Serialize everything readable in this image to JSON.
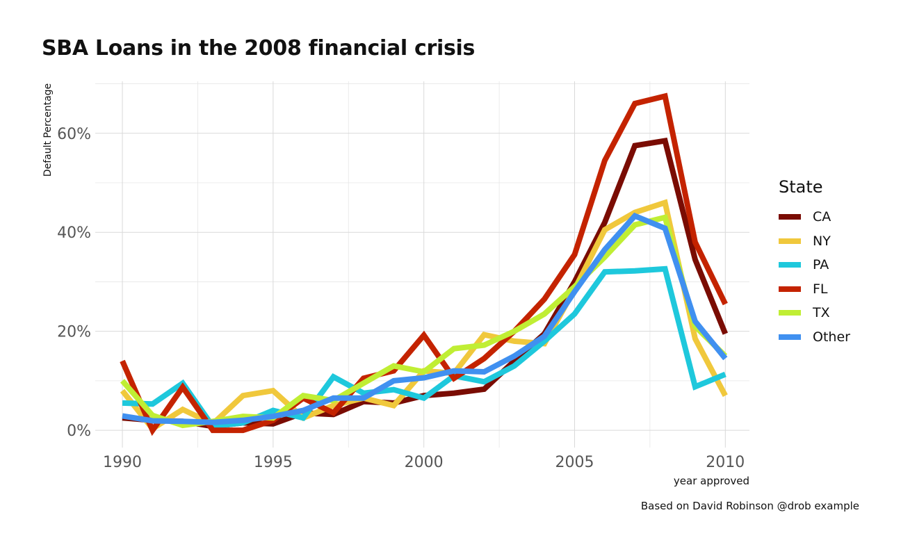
{
  "chart_data": {
    "type": "line",
    "title": "SBA Loans in the 2008 financial crisis",
    "caption": "Based on David Robinson @drob example",
    "xlabel": "year approved",
    "ylabel": "Default Percentage",
    "xlim": [
      1989.1,
      2010.8
    ],
    "ylim": [
      -3.5,
      70.5
    ],
    "xticks": [
      1990,
      1995,
      2000,
      2005,
      2010
    ],
    "xtick_labels": [
      "1990",
      "1995",
      "2000",
      "2005",
      "2010"
    ],
    "yticks": [
      0,
      20,
      40,
      60
    ],
    "ytick_labels": [
      "0%",
      "20%",
      "40%",
      "60%"
    ],
    "grid": true,
    "legend": {
      "title": "State",
      "position": "right"
    },
    "x": [
      1990,
      1991,
      1992,
      1993,
      1994,
      1995,
      1996,
      1997,
      1998,
      1999,
      2000,
      2001,
      2002,
      2003,
      2004,
      2005,
      2006,
      2007,
      2008,
      2009,
      2010
    ],
    "series": [
      {
        "name": "CA",
        "color": "#7a0c03",
        "values": [
          2.5,
          2.0,
          1.8,
          0.8,
          1.5,
          1.3,
          3.5,
          3.2,
          5.8,
          5.5,
          7.0,
          7.5,
          8.3,
          14.0,
          19.5,
          30.0,
          42.0,
          57.5,
          58.5,
          34.5,
          19.5
        ]
      },
      {
        "name": "NY",
        "color": "#f0c83c",
        "values": [
          8.0,
          0.3,
          4.2,
          1.3,
          7.0,
          8.0,
          2.5,
          5.0,
          6.5,
          5.0,
          12.0,
          11.5,
          19.3,
          18.0,
          17.5,
          28.5,
          40.5,
          44.0,
          46.0,
          18.5,
          7.0
        ]
      },
      {
        "name": "PA",
        "color": "#1ec8dc",
        "values": [
          5.5,
          5.3,
          9.5,
          0.8,
          1.5,
          4.0,
          2.5,
          10.8,
          7.5,
          8.2,
          6.5,
          11.0,
          9.8,
          13.0,
          18.0,
          23.5,
          32.0,
          32.2,
          32.6,
          8.8,
          11.3
        ]
      },
      {
        "name": "FL",
        "color": "#c42300",
        "values": [
          14.0,
          0.0,
          8.7,
          0.0,
          0.0,
          2.0,
          6.5,
          3.5,
          10.5,
          12.0,
          19.2,
          10.5,
          14.5,
          20.0,
          26.5,
          35.5,
          54.5,
          66.0,
          67.5,
          38.0,
          25.5
        ]
      },
      {
        "name": "TX",
        "color": "#c0ee34",
        "values": [
          10.0,
          3.0,
          1.0,
          1.8,
          2.8,
          2.5,
          7.0,
          6.0,
          9.5,
          13.0,
          11.8,
          16.5,
          17.2,
          20.0,
          23.5,
          29.0,
          35.0,
          41.5,
          43.0,
          21.0,
          15.0
        ]
      },
      {
        "name": "Other",
        "color": "#4090f0",
        "values": [
          2.9,
          1.9,
          1.8,
          1.6,
          2.0,
          2.8,
          4.0,
          6.5,
          6.5,
          10.0,
          10.6,
          12.0,
          11.8,
          15.0,
          19.0,
          28.0,
          36.5,
          43.3,
          40.8,
          22.0,
          14.5
        ]
      }
    ]
  }
}
